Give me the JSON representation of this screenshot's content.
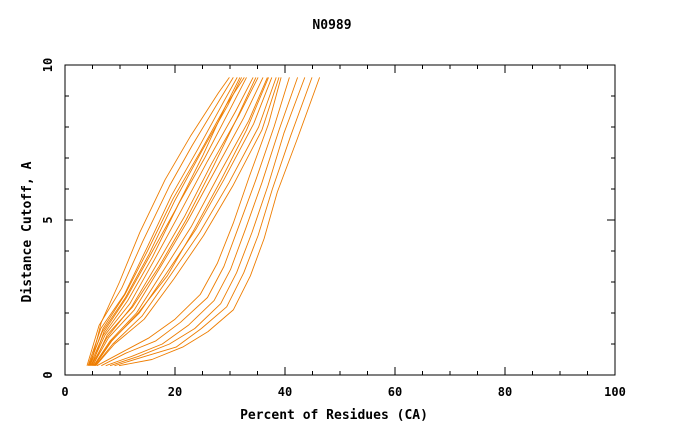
{
  "chart_data": {
    "type": "line",
    "title": "N0989",
    "xlabel": "Percent of Residues (CA)",
    "ylabel": "Distance Cutoff, A",
    "xlim": [
      0,
      100
    ],
    "ylim": [
      0,
      10
    ],
    "x_ticks": [
      "0",
      "20",
      "40",
      "60",
      "80",
      "100"
    ],
    "y_ticks": [
      "0",
      "5",
      "10"
    ],
    "x_minor_step": 5,
    "y_minor_step": 1,
    "line_color": "#ee7d00",
    "series": [
      {
        "x": [
          4.0,
          6.2,
          10.3,
          14.1,
          19.0,
          23.1,
          28.2,
          30.6
        ],
        "y": [
          0.3,
          1.6,
          2.8,
          4.3,
          6.1,
          7.4,
          8.9,
          9.6
        ]
      },
      {
        "x": [
          4.2,
          6.5,
          10.8,
          14.9,
          19.4,
          24.2,
          28.8,
          31.3
        ],
        "y": [
          0.3,
          1.5,
          2.6,
          4.1,
          5.8,
          7.3,
          8.8,
          9.6
        ]
      },
      {
        "x": [
          4.3,
          6.8,
          11.0,
          15.3,
          19.9,
          24.8,
          29.6,
          32.1
        ],
        "y": [
          0.3,
          1.4,
          2.5,
          3.9,
          5.6,
          7.2,
          8.7,
          9.6
        ]
      },
      {
        "x": [
          4.5,
          7.0,
          11.4,
          15.9,
          20.6,
          25.4,
          30.1,
          33.0
        ],
        "y": [
          0.3,
          1.3,
          2.4,
          3.8,
          5.5,
          7.0,
          8.6,
          9.6
        ]
      },
      {
        "x": [
          4.7,
          7.3,
          11.8,
          16.2,
          21.1,
          25.9,
          31.0,
          34.2
        ],
        "y": [
          0.3,
          1.3,
          2.3,
          3.7,
          5.3,
          6.9,
          8.5,
          9.6
        ]
      },
      {
        "x": [
          4.8,
          7.6,
          12.1,
          16.8,
          21.7,
          26.6,
          31.7,
          35.1
        ],
        "y": [
          0.3,
          1.2,
          2.2,
          3.6,
          5.1,
          6.8,
          8.4,
          9.6
        ]
      },
      {
        "x": [
          5.0,
          7.9,
          12.6,
          17.4,
          22.4,
          27.3,
          32.5,
          36.0
        ],
        "y": [
          0.3,
          1.2,
          2.1,
          3.5,
          5.0,
          6.6,
          8.3,
          9.6
        ]
      },
      {
        "x": [
          5.2,
          8.2,
          13.0,
          18.0,
          23.0,
          28.1,
          33.4,
          36.8
        ],
        "y": [
          0.3,
          1.1,
          2.0,
          3.4,
          4.8,
          6.5,
          8.2,
          9.6
        ]
      },
      {
        "x": [
          5.3,
          8.4,
          13.5,
          18.5,
          23.8,
          28.9,
          34.3,
          37.6
        ],
        "y": [
          0.3,
          1.1,
          2.0,
          3.3,
          4.7,
          6.3,
          8.1,
          9.6
        ]
      },
      {
        "x": [
          5.5,
          8.7,
          14.0,
          19.1,
          24.5,
          29.8,
          35.2,
          38.4
        ],
        "y": [
          0.3,
          1.0,
          1.9,
          3.2,
          4.6,
          6.2,
          8.0,
          9.6
        ]
      },
      {
        "x": [
          4.6,
          6.6,
          9.9,
          13.6,
          18.2,
          22.8,
          27.9,
          29.9
        ],
        "y": [
          0.3,
          1.7,
          3.0,
          4.6,
          6.3,
          7.7,
          9.1,
          9.6
        ]
      },
      {
        "x": [
          4.9,
          7.1,
          11.2,
          15.6,
          20.3,
          25.1,
          29.0,
          31.8
        ],
        "y": [
          0.3,
          1.4,
          2.5,
          3.9,
          5.4,
          7.1,
          8.6,
          9.6
        ]
      },
      {
        "x": [
          5.1,
          7.7,
          12.3,
          17.1,
          22.0,
          26.9,
          31.3,
          34.7
        ],
        "y": [
          0.3,
          1.3,
          2.2,
          3.5,
          5.0,
          6.7,
          8.3,
          9.6
        ]
      },
      {
        "x": [
          5.4,
          8.5,
          13.3,
          18.6,
          23.5,
          28.4,
          33.0,
          37.0
        ],
        "y": [
          0.3,
          1.1,
          2.0,
          3.2,
          4.7,
          6.3,
          7.9,
          9.6
        ]
      },
      {
        "x": [
          4.4,
          6.9,
          10.9,
          15.0,
          19.7,
          24.6,
          29.3,
          32.6
        ],
        "y": [
          0.3,
          1.5,
          2.6,
          4.0,
          5.7,
          7.2,
          8.7,
          9.6
        ]
      },
      {
        "x": [
          5.6,
          9.0,
          14.4,
          19.8,
          25.2,
          30.5,
          35.8,
          38.9
        ],
        "y": [
          0.3,
          1.0,
          1.8,
          3.1,
          4.5,
          6.1,
          7.9,
          9.6
        ]
      },
      {
        "x": [
          5.8,
          10.0,
          15.3,
          20.0,
          24.6,
          27.7,
          30.6,
          33.5,
          37.0,
          39.3
        ],
        "y": [
          0.3,
          0.7,
          1.2,
          1.8,
          2.6,
          3.6,
          4.9,
          6.4,
          8.1,
          9.6
        ]
      },
      {
        "x": [
          6.6,
          11.0,
          16.5,
          21.0,
          25.9,
          28.9,
          31.6,
          34.7,
          38.0,
          40.8
        ],
        "y": [
          0.3,
          0.7,
          1.1,
          1.7,
          2.5,
          3.5,
          4.8,
          6.3,
          8.0,
          9.6
        ]
      },
      {
        "x": [
          7.4,
          12.1,
          17.7,
          22.4,
          27.1,
          30.1,
          32.8,
          35.8,
          38.9,
          42.3
        ],
        "y": [
          0.3,
          0.6,
          1.0,
          1.6,
          2.4,
          3.4,
          4.7,
          6.2,
          7.9,
          9.6
        ]
      },
      {
        "x": [
          8.2,
          13.3,
          19.0,
          23.6,
          28.3,
          31.2,
          34.0,
          36.9,
          39.8,
          43.6
        ],
        "y": [
          0.3,
          0.6,
          1.0,
          1.5,
          2.3,
          3.3,
          4.6,
          6.1,
          7.8,
          9.6
        ]
      },
      {
        "x": [
          9.0,
          14.5,
          20.2,
          24.8,
          29.4,
          32.5,
          35.1,
          37.7,
          41.0,
          44.9
        ],
        "y": [
          0.3,
          0.6,
          0.9,
          1.5,
          2.2,
          3.3,
          4.5,
          6.0,
          7.7,
          9.6
        ]
      },
      {
        "x": [
          9.8,
          15.8,
          21.4,
          26.0,
          30.6,
          33.7,
          36.2,
          38.6,
          42.2,
          46.3
        ],
        "y": [
          0.3,
          0.5,
          0.9,
          1.4,
          2.1,
          3.2,
          4.4,
          5.9,
          7.6,
          9.6
        ]
      }
    ]
  }
}
